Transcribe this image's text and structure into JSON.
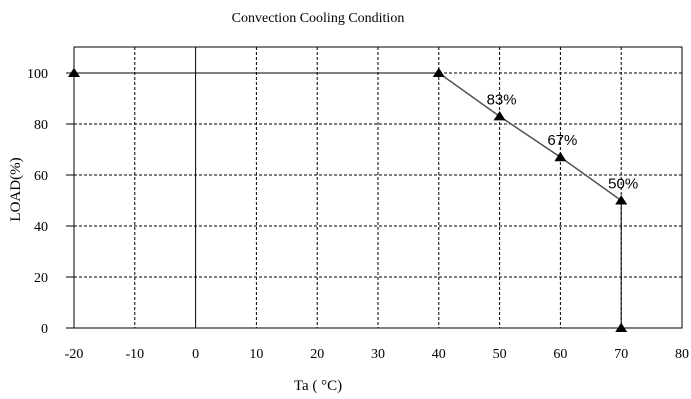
{
  "chart_data": {
    "type": "line",
    "title": "Convection Cooling Condition",
    "xlabel": "Ta ( °C)",
    "ylabel": "LOAD(%)",
    "xlim": [
      -20,
      80
    ],
    "ylim": [
      0,
      100
    ],
    "xticks": [
      "-20",
      "-10",
      "0",
      "10",
      "20",
      "30",
      "40",
      "50",
      "60",
      "70",
      "80"
    ],
    "yticks": [
      "0",
      "20",
      "40",
      "60",
      "80",
      "100"
    ],
    "grid": true,
    "series": [
      {
        "x": [
          -20,
          40,
          50,
          60,
          70,
          70
        ],
        "y": [
          100,
          100,
          83,
          67,
          50,
          0
        ],
        "marker": "triangle",
        "color": "#000000"
      }
    ],
    "annotations": [
      {
        "text": "83%",
        "x": 50,
        "y": 83
      },
      {
        "text": "67%",
        "x": 60,
        "y": 67
      },
      {
        "text": "50%",
        "x": 70,
        "y": 50
      }
    ]
  }
}
